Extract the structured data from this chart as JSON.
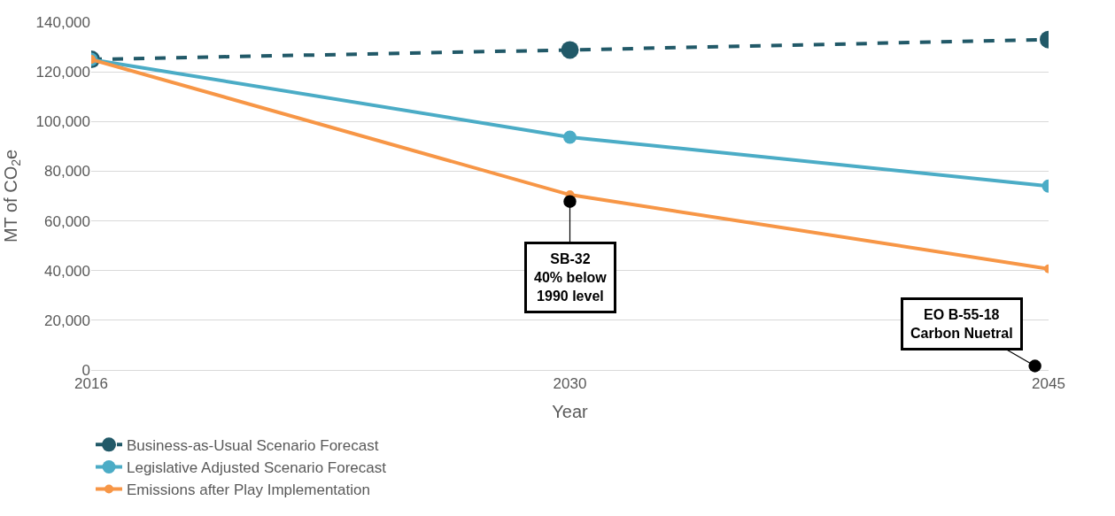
{
  "chart_data": {
    "type": "line",
    "xlabel": "Year",
    "ylabel": "MT of CO$_{2}$e",
    "categories": [
      "2016",
      "2030",
      "2045"
    ],
    "series": [
      {
        "name": "Business-as-Usual Scenario Forecast",
        "color": "#215968",
        "values": [
          125000,
          128800,
          133000
        ],
        "line_style": "dashed"
      },
      {
        "name": "Legislative Adjusted Scenario Forecast",
        "color": "#4bacc6",
        "values": [
          125000,
          93700,
          74000
        ]
      },
      {
        "name": "Emissions after Play Implementation",
        "color": "#f79646",
        "values": [
          125000,
          70500,
          40700
        ]
      }
    ],
    "ylim": [
      0,
      140000
    ],
    "yticks": [
      {
        "value": 0,
        "label": "0"
      },
      {
        "value": 20000,
        "label": "20,000"
      },
      {
        "value": 40000,
        "label": "40,000"
      },
      {
        "value": 60000,
        "label": "60,000"
      },
      {
        "value": 80000,
        "label": "80,000"
      },
      {
        "value": 100000,
        "label": "100,000"
      },
      {
        "value": 120000,
        "label": "120,000"
      },
      {
        "value": 140000,
        "label": "140,000"
      }
    ],
    "grid": "y",
    "legend": "bottom",
    "marker": "circle",
    "line_style": "solid",
    "annotations": [
      {
        "text": "SB-32\n40% below\n1990 level",
        "x": "2030",
        "y": 71000
      },
      "EO B-55-18\nCarbon Nuetral"
    ]
  }
}
